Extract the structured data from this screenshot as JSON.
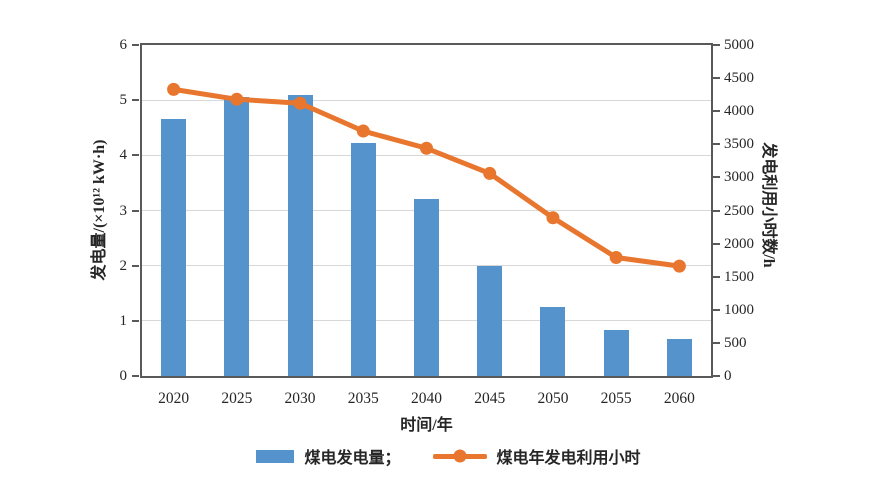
{
  "chart_data": {
    "type": "bar+line",
    "categories": [
      "2020",
      "2025",
      "2030",
      "2035",
      "2040",
      "2045",
      "2050",
      "2055",
      "2060"
    ],
    "series": [
      {
        "name": "煤电发电量",
        "type": "bar",
        "y_axis": "left",
        "color": "#5593cc",
        "values": [
          4.65,
          5.05,
          5.1,
          4.23,
          3.2,
          2.0,
          1.25,
          0.83,
          0.67
        ]
      },
      {
        "name": "煤电年发电利用小时",
        "type": "line",
        "y_axis": "right",
        "color": "#e8762e",
        "marker": "circle",
        "values": [
          4330,
          4180,
          4120,
          3700,
          3440,
          3060,
          2390,
          1790,
          1660
        ]
      }
    ],
    "title": "",
    "xlabel": "时间/年",
    "left_axis": {
      "label": "发电量/(×10¹² kW·h)",
      "min": 0,
      "max": 6,
      "tick_step": 1,
      "ticks": [
        "0",
        "1",
        "2",
        "3",
        "4",
        "5",
        "6"
      ]
    },
    "right_axis": {
      "label": "发电利用小时数/h",
      "min": 0,
      "max": 5000,
      "tick_step": 500,
      "ticks": [
        "0",
        "500",
        "1000",
        "1500",
        "2000",
        "2500",
        "3000",
        "3500",
        "4000",
        "4500",
        "5000"
      ]
    },
    "grid": "horizontal gridlines at left-axis integers 1-5",
    "legend": {
      "position": "bottom-center",
      "entries": [
        {
          "label": "煤电发电量；",
          "swatch": "bar",
          "color": "#5593cc"
        },
        {
          "label": "煤电年发电利用小时",
          "swatch": "line-with-marker",
          "color": "#e8762e"
        }
      ]
    },
    "colors": {
      "axis_line": "#595959",
      "gridline": "#d8d8d8",
      "text": "#262626",
      "background": "#ffffff"
    }
  }
}
